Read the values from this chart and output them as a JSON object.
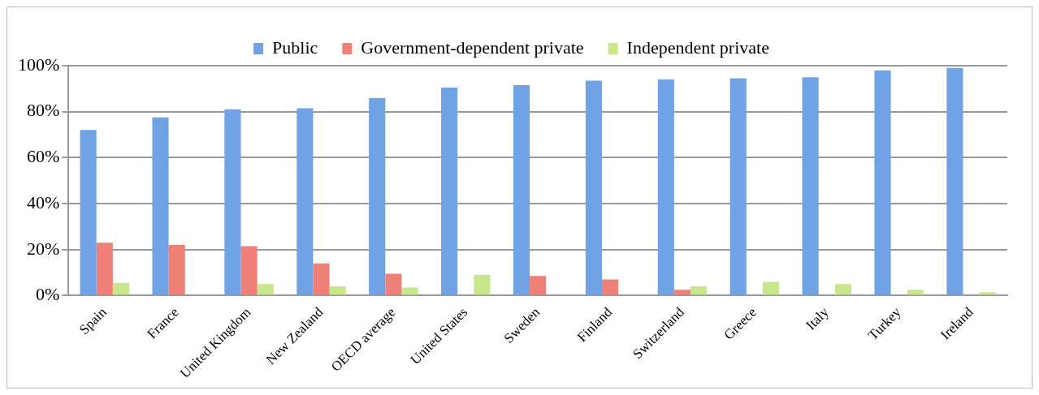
{
  "chart_data": {
    "type": "bar",
    "categories": [
      "Spain",
      "France",
      "United Kingdom",
      "New Zealand",
      "OECD average",
      "United States",
      "Sweden",
      "Finland",
      "Switzerland",
      "Greece",
      "Italy",
      "Turkey",
      "Ireland"
    ],
    "series": [
      {
        "name": "Public",
        "color": "#6fa3e6",
        "values": [
          72,
          77.5,
          81,
          81.5,
          86,
          90.5,
          91.5,
          93.5,
          94,
          94.5,
          95,
          98,
          99
        ]
      },
      {
        "name": "Government-dependent private",
        "color": "#ee8077",
        "values": [
          23,
          22,
          21.5,
          14,
          9.5,
          null,
          8.5,
          7,
          2.5,
          null,
          null,
          null,
          null
        ]
      },
      {
        "name": "Independent private",
        "color": "#c8e68a",
        "values": [
          5.5,
          0,
          5,
          4,
          3.5,
          9,
          null,
          null,
          4,
          6,
          5,
          2.5,
          1.5
        ]
      }
    ],
    "ylim": [
      0,
      100
    ],
    "yticks": [
      {
        "value": 0,
        "label": "0%"
      },
      {
        "value": 20,
        "label": "20%"
      },
      {
        "value": 40,
        "label": "40%"
      },
      {
        "value": 60,
        "label": "60%"
      },
      {
        "value": 80,
        "label": "80%"
      },
      {
        "value": 100,
        "label": "100%"
      }
    ],
    "grid": "y",
    "legend": "top"
  }
}
